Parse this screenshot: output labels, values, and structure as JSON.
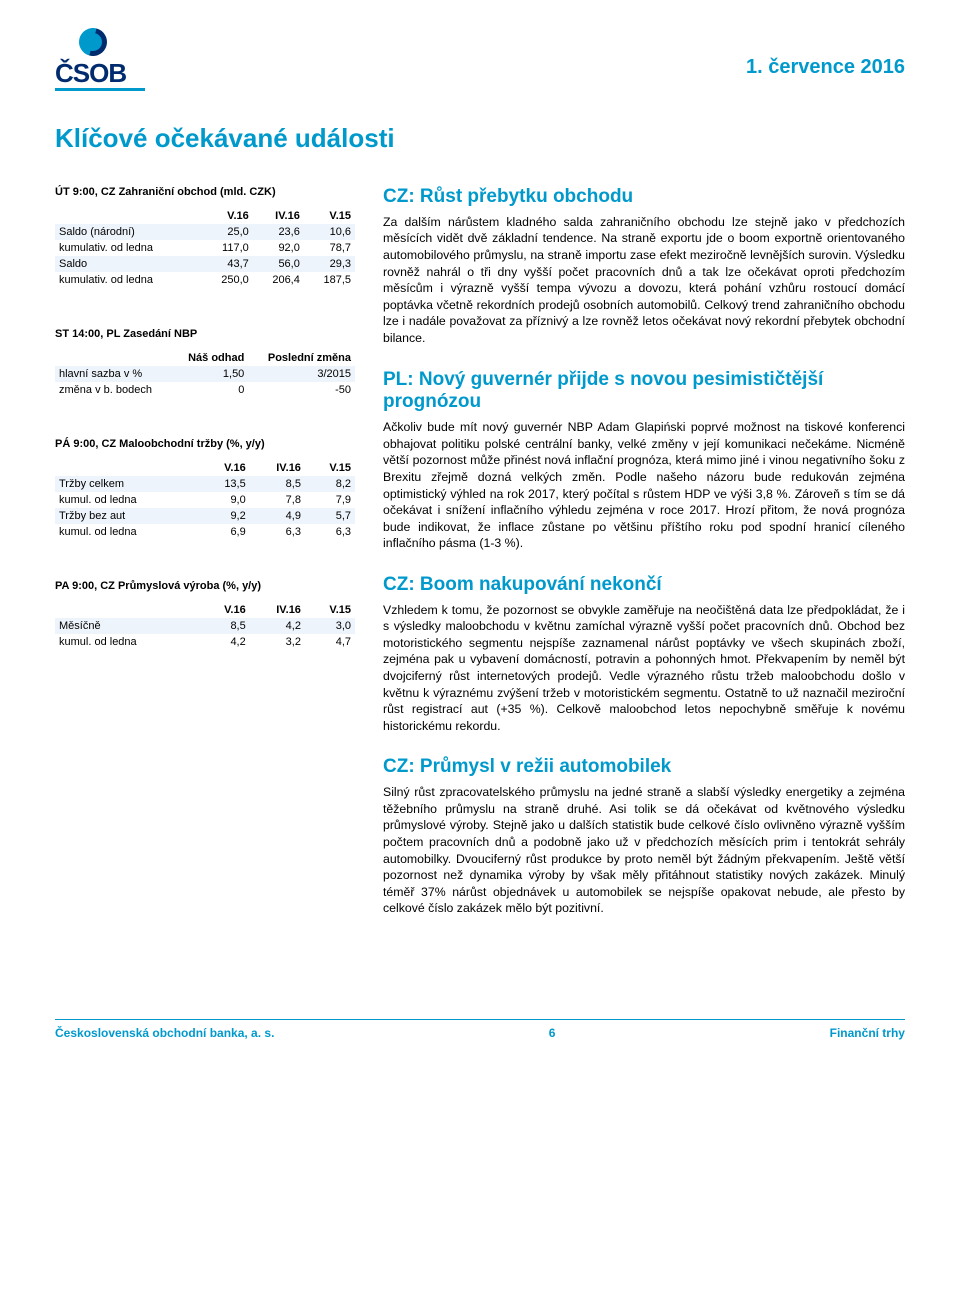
{
  "brand": "ČSOB",
  "date": "1. července 2016",
  "main_title": "Klíčové očekávané události",
  "tables": {
    "t1": {
      "title": "ÚT 9:00, CZ Zahraniční obchod (mld. CZK)",
      "headers": [
        "",
        "V.16",
        "IV.16",
        "V.15"
      ],
      "rows": [
        {
          "alt": true,
          "cells": [
            "Saldo (národní)",
            "25,0",
            "23,6",
            "10,6"
          ]
        },
        {
          "alt": false,
          "cells": [
            "kumulativ. od ledna",
            "117,0",
            "92,0",
            "78,7"
          ]
        },
        {
          "alt": true,
          "cells": [
            "Saldo",
            "43,7",
            "56,0",
            "29,3"
          ]
        },
        {
          "alt": false,
          "cells": [
            "kumulativ. od ledna",
            "250,0",
            "206,4",
            "187,5"
          ]
        }
      ]
    },
    "t2": {
      "title": "ST 14:00, PL Zasedání NBP",
      "headers": [
        "",
        "Náš odhad",
        "Poslední změna"
      ],
      "rows": [
        {
          "alt": true,
          "cells": [
            "hlavní sazba v %",
            "1,50",
            "3/2015"
          ]
        },
        {
          "alt": false,
          "cells": [
            "změna v b. bodech",
            "0",
            "-50"
          ]
        }
      ]
    },
    "t3": {
      "title": "PÁ 9:00, CZ Maloobchodní tržby (%, y/y)",
      "headers": [
        "",
        "V.16",
        "IV.16",
        "V.15"
      ],
      "rows": [
        {
          "alt": true,
          "cells": [
            "Tržby celkem",
            "13,5",
            "8,5",
            "8,2"
          ]
        },
        {
          "alt": false,
          "cells": [
            "kumul. od ledna",
            "9,0",
            "7,8",
            "7,9"
          ]
        },
        {
          "alt": true,
          "cells": [
            "Tržby bez aut",
            "9,2",
            "4,9",
            "5,7"
          ]
        },
        {
          "alt": false,
          "cells": [
            "kumul. od ledna",
            "6,9",
            "6,3",
            "6,3"
          ]
        }
      ]
    },
    "t4": {
      "title": "PA 9:00, CZ Průmyslová výroba (%, y/y)",
      "headers": [
        "",
        "V.16",
        "IV.16",
        "V.15"
      ],
      "rows": [
        {
          "alt": true,
          "cells": [
            "Měsíčně",
            "8,5",
            "4,2",
            "3,0"
          ]
        },
        {
          "alt": false,
          "cells": [
            "kumul. od ledna",
            "4,2",
            "3,2",
            "4,7"
          ]
        }
      ]
    }
  },
  "sections": {
    "s1": {
      "title": "CZ: Růst přebytku obchodu",
      "body": "Za dalším nárůstem kladného salda zahraničního obchodu lze stejně jako v předchozích měsících vidět dvě základní tendence. Na straně exportu jde o boom exportně orientovaného automobilového průmyslu, na straně importu zase efekt meziročně levnějších surovin. Výsledku rovněž nahrál o tři dny vyšší počet pracovních dnů a tak lze očekávat oproti předchozím měsícům i výrazně vyšší tempa vývozu a dovozu, která pohání vzhůru rostoucí domácí poptávka včetně rekordních prodejů osobních automobilů. Celkový trend zahraničního obchodu lze i nadále považovat za příznivý a lze rovněž letos očekávat nový rekordní přebytek obchodní bilance."
    },
    "s2": {
      "title": "PL: Nový guvernér přijde s novou pesimističtější prognózou",
      "body": "Ačkoliv bude mít nový guvernér NBP Adam Glapiński poprvé možnost na tiskové konferenci obhajovat politiku polské centrální banky, velké změny v její komunikaci nečekáme. Nicméně větší pozornost může přinést nová inflační prognóza, která mimo jiné i vinou negativního šoku z Brexitu zřejmě dozná velkých změn. Podle našeho názoru bude redukován zejména optimistický výhled na rok 2017, který počítal s růstem HDP ve výši 3,8 %. Zároveň s tím se dá očekávat i snížení inflačního výhledu zejména v roce 2017. Hrozí přitom, že nová prognóza bude indikovat, že inflace zůstane po většinu příštího roku pod spodní hranicí cíleného inflačního pásma (1-3 %)."
    },
    "s3": {
      "title": "CZ: Boom nakupování nekončí",
      "body": "Vzhledem k tomu, že pozornost se obvykle zaměřuje na neočištěná data lze předpokládat, že i s výsledky maloobchodu v květnu zamíchal výrazně vyšší počet pracovních dnů. Obchod bez motoristického segmentu nejspíše zaznamenal nárůst poptávky ve všech skupinách zboží, zejména pak u vybavení domácností, potravin a pohonných hmot. Překvapením by neměl být dvojciferný růst internetových prodejů. Vedle výrazného růstu tržeb maloobchodu došlo v květnu k výraznému zvýšení tržeb v motoristickém segmentu. Ostatně to už naznačil meziroční růst registrací aut (+35 %). Celkově maloobchod letos nepochybně směřuje k novému historickému rekordu."
    },
    "s4": {
      "title": "CZ: Průmysl v režii automobilek",
      "body": "Silný růst zpracovatelského průmyslu na jedné straně a slabší výsledky energetiky a zejména těžebního průmyslu na straně druhé. Asi tolik se dá očekávat od květnového výsledku průmyslové výroby. Stejně jako u dalších statistik bude celkové číslo ovlivněno výrazně vyšším počtem pracovních dnů a podobně jako už v předchozích měsících prim i tentokrát sehrály automobilky. Dvouciferný růst produkce by proto neměl být žádným překvapením. Ještě větší pozornost než dynamika výroby by však měly přitáhnout statistiky nových zakázek. Minulý téměř 37% nárůst objednávek u automobilek se nejspíše opakovat nebude, ale přesto by celkové číslo zakázek mělo být pozitivní."
    }
  },
  "footer": {
    "left": "Československá obchodní banka, a. s.",
    "page": "6",
    "right": "Finanční trhy"
  },
  "colors": {
    "accent": "#0099cc",
    "navy": "#002b6e",
    "row_alt": "#eef4fb"
  }
}
